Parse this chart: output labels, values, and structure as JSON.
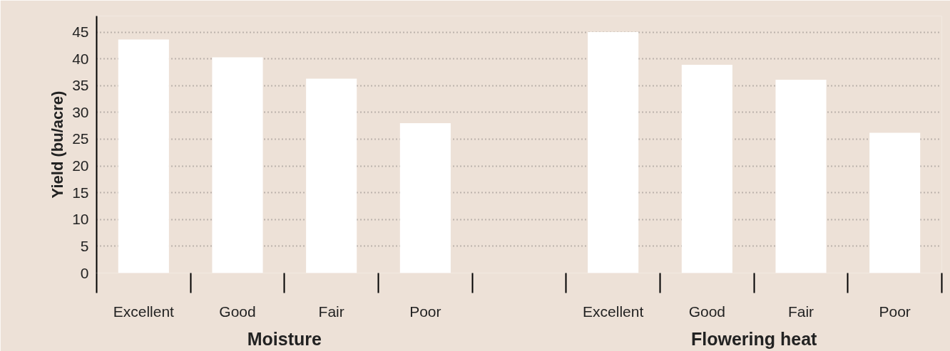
{
  "chart_data": {
    "type": "bar",
    "ylabel": "Yield (bu/acre)",
    "categories": [
      "Excellent",
      "Good",
      "Fair",
      "Poor",
      null,
      "Excellent",
      "Good",
      "Fair",
      "Poor"
    ],
    "values": [
      43.6,
      40.3,
      36.3,
      28.0,
      null,
      45.0,
      38.9,
      36.1,
      26.2
    ],
    "color": "#ffffff",
    "ylim": [
      0,
      48
    ],
    "yticks": [
      0,
      5,
      10,
      15,
      20,
      25,
      30,
      35,
      40,
      45
    ],
    "grid": "y",
    "annotations": [
      "Moisture",
      "Flowering heat"
    ]
  }
}
